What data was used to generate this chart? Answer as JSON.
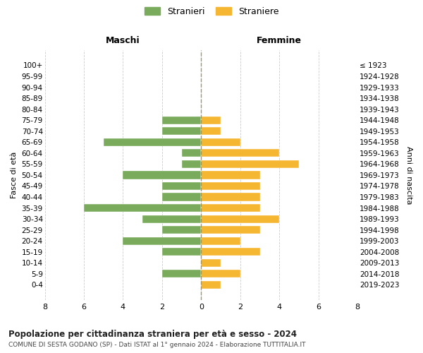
{
  "age_groups": [
    "100+",
    "95-99",
    "90-94",
    "85-89",
    "80-84",
    "75-79",
    "70-74",
    "65-69",
    "60-64",
    "55-59",
    "50-54",
    "45-49",
    "40-44",
    "35-39",
    "30-34",
    "25-29",
    "20-24",
    "15-19",
    "10-14",
    "5-9",
    "0-4"
  ],
  "birth_years": [
    "≤ 1923",
    "1924-1928",
    "1929-1933",
    "1934-1938",
    "1939-1943",
    "1944-1948",
    "1949-1953",
    "1954-1958",
    "1959-1963",
    "1964-1968",
    "1969-1973",
    "1974-1978",
    "1979-1983",
    "1984-1988",
    "1989-1993",
    "1994-1998",
    "1999-2003",
    "2004-2008",
    "2009-2013",
    "2014-2018",
    "2019-2023"
  ],
  "maschi": [
    0,
    0,
    0,
    0,
    0,
    2,
    2,
    5,
    1,
    1,
    4,
    2,
    2,
    6,
    3,
    2,
    4,
    2,
    0,
    2,
    0
  ],
  "femmine": [
    0,
    0,
    0,
    0,
    0,
    1,
    1,
    2,
    4,
    5,
    3,
    3,
    3,
    3,
    4,
    3,
    2,
    3,
    1,
    2,
    1
  ],
  "color_maschi": "#7aaa5c",
  "color_femmine": "#f5b731",
  "title": "Popolazione per cittadinanza straniera per età e sesso - 2024",
  "subtitle": "COMUNE DI SESTA GODANO (SP) - Dati ISTAT al 1° gennaio 2024 - Elaborazione TUTTITALIA.IT",
  "ylabel_left": "Fasce di età",
  "ylabel_right": "Anni di nascita",
  "legend_maschi": "Stranieri",
  "legend_femmine": "Straniere",
  "xlim": 8,
  "background_color": "#ffffff",
  "grid_color": "#cccccc",
  "maschi_header": "Maschi",
  "femmine_header": "Femmine"
}
